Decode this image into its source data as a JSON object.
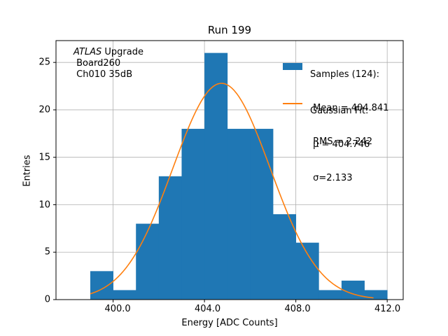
{
  "chart_data": {
    "type": "bar",
    "title": "Run 199",
    "xlabel": "Energy [ADC Counts]",
    "ylabel": "Entries",
    "xlim": [
      397.5,
      412.7
    ],
    "ylim": [
      0,
      27.3
    ],
    "grid": true,
    "x_ticks": [
      400,
      404,
      408,
      412
    ],
    "x_tick_labels": [
      "400.0",
      "404.0",
      "408.0",
      "412.0"
    ],
    "y_ticks": [
      0,
      5,
      10,
      15,
      20,
      25
    ],
    "y_tick_labels": [
      "0",
      "5",
      "10",
      "15",
      "20",
      "25"
    ],
    "bin_edges": [
      399,
      400,
      401,
      402,
      403,
      404,
      405,
      406,
      407,
      408,
      409,
      410,
      411,
      412
    ],
    "counts": [
      3,
      1,
      8,
      13,
      18,
      26,
      18,
      18,
      9,
      6,
      1,
      2,
      1
    ],
    "bar_color": "#1f77b4",
    "fit": {
      "name": "Gaussian Fit",
      "mu": 404.746,
      "sigma": 2.133,
      "peak": 22.8,
      "x_range": [
        399,
        411.4
      ],
      "color": "#ff7f0e"
    },
    "annotation": {
      "line1_italic": "ATLAS",
      "line1_rest": " Upgrade",
      "line2": " Board260",
      "line3": " Ch010 35dB"
    },
    "legend": {
      "placement": "top-right",
      "samples": {
        "line1": "Samples (124):",
        "line2": " Mean = 404.841",
        "line3": " RMS = 2.242"
      },
      "gauss": {
        "line1": "Gaussian Fit:",
        "line2": " μ = 404.746",
        "line3": " σ=2.133"
      }
    }
  }
}
